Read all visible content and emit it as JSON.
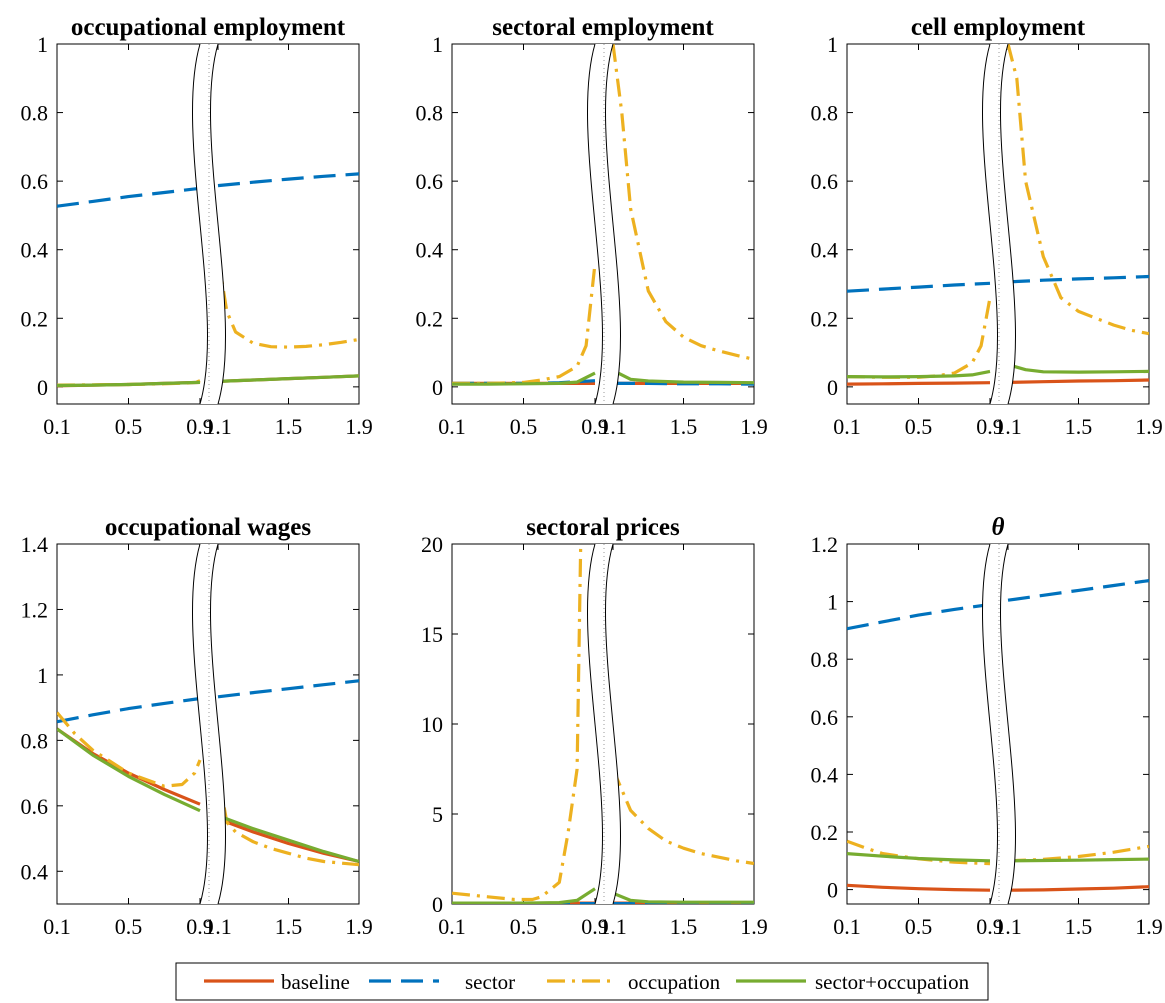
{
  "colors": {
    "baseline": "#D95319",
    "sector": "#0072BD",
    "occupation": "#EDB120",
    "sector_occupation": "#77AC30"
  },
  "legend": [
    {
      "key": "baseline",
      "label": "baseline",
      "style": "solid"
    },
    {
      "key": "sector",
      "label": "sector",
      "style": "dashed"
    },
    {
      "key": "occupation",
      "label": "occupation",
      "style": "dashdot"
    },
    {
      "key": "sector_occupation",
      "label": "sector+occupation",
      "style": "solid"
    }
  ],
  "chart_data": [
    {
      "type": "line",
      "title": "occupational employment",
      "ylim": [
        -0.05,
        1
      ],
      "yticks": [
        0,
        0.2,
        0.4,
        0.6,
        0.8,
        1
      ],
      "ytick_labels": [
        "0",
        "0.2",
        "0.4",
        "0.6",
        "0.8",
        "1"
      ],
      "xticks": [
        0.1,
        0.5,
        0.9,
        1.1,
        1.5,
        1.9
      ],
      "xtick_labels": [
        "0.1",
        "0.5",
        "0.9",
        "1.1",
        "1.5",
        "1.9"
      ],
      "axis_break": [
        0.9,
        1.1
      ],
      "series": [
        {
          "key": "baseline",
          "x": [
            0.1,
            0.3,
            0.5,
            0.7,
            0.9,
            1.1,
            1.3,
            1.5,
            1.7,
            1.9
          ],
          "y": [
            0.003,
            0.005,
            0.007,
            0.01,
            0.013,
            0.016,
            0.02,
            0.024,
            0.028,
            0.032
          ]
        },
        {
          "key": "sector",
          "x": [
            0.1,
            0.3,
            0.5,
            0.7,
            0.9,
            1.1,
            1.3,
            1.5,
            1.7,
            1.9
          ],
          "y": [
            0.527,
            0.541,
            0.555,
            0.567,
            0.579,
            0.587,
            0.597,
            0.606,
            0.614,
            0.621
          ]
        },
        {
          "key": "occupation",
          "x": [
            0.1,
            0.3,
            0.5,
            0.7,
            0.87,
            0.9,
            1.1,
            1.15,
            1.2,
            1.3,
            1.4,
            1.5,
            1.6,
            1.7,
            1.8,
            1.9
          ],
          "y": [
            0.005,
            0.006,
            0.007,
            0.009,
            0.012,
            0.018,
            0.38,
            0.22,
            0.16,
            0.127,
            0.117,
            0.116,
            0.118,
            0.123,
            0.13,
            0.138
          ]
        },
        {
          "key": "sector_occupation",
          "x": [
            0.1,
            0.3,
            0.5,
            0.7,
            0.9,
            1.1,
            1.3,
            1.5,
            1.7,
            1.9
          ],
          "y": [
            0.004,
            0.005,
            0.007,
            0.01,
            0.013,
            0.016,
            0.02,
            0.024,
            0.028,
            0.032
          ]
        }
      ]
    },
    {
      "type": "line",
      "title": "sectoral employment",
      "ylim": [
        -0.05,
        1
      ],
      "yticks": [
        0,
        0.2,
        0.4,
        0.6,
        0.8,
        1
      ],
      "ytick_labels": [
        "0",
        "0.2",
        "0.4",
        "0.6",
        "0.8",
        "1"
      ],
      "xticks": [
        0.1,
        0.5,
        0.9,
        1.1,
        1.5,
        1.9
      ],
      "xtick_labels": [
        "0.1",
        "0.5",
        "0.9",
        "1.1",
        "1.5",
        "1.9"
      ],
      "axis_break": [
        0.9,
        1.1
      ],
      "series": [
        {
          "key": "baseline",
          "x": [
            0.1,
            0.3,
            0.5,
            0.7,
            0.9,
            1.1,
            1.3,
            1.5,
            1.7,
            1.9
          ],
          "y": [
            0.01,
            0.01,
            0.01,
            0.01,
            0.01,
            0.01,
            0.01,
            0.01,
            0.01,
            0.01
          ]
        },
        {
          "key": "sector",
          "x": [
            0.1,
            0.3,
            0.5,
            0.7,
            0.9,
            1.1,
            1.3,
            1.5,
            1.7,
            1.9
          ],
          "y": [
            0.01,
            0.01,
            0.01,
            0.012,
            0.018,
            0.01,
            0.01,
            0.009,
            0.009,
            0.008
          ]
        },
        {
          "key": "occupation",
          "x": [
            0.1,
            0.3,
            0.5,
            0.6,
            0.7,
            0.8,
            0.85,
            0.9,
            1.1,
            1.15,
            1.2,
            1.3,
            1.4,
            1.5,
            1.6,
            1.7,
            1.8,
            1.9
          ],
          "y": [
            0.01,
            0.01,
            0.013,
            0.02,
            0.03,
            0.06,
            0.12,
            0.36,
            1.0,
            0.8,
            0.52,
            0.28,
            0.19,
            0.145,
            0.12,
            0.105,
            0.092,
            0.08
          ]
        },
        {
          "key": "sector_occupation",
          "x": [
            0.1,
            0.3,
            0.5,
            0.7,
            0.8,
            0.9,
            1.1,
            1.2,
            1.3,
            1.5,
            1.7,
            1.9
          ],
          "y": [
            0.008,
            0.008,
            0.009,
            0.01,
            0.014,
            0.04,
            0.048,
            0.022,
            0.017,
            0.014,
            0.013,
            0.012
          ]
        }
      ]
    },
    {
      "type": "line",
      "title": "cell employment",
      "ylim": [
        -0.05,
        1
      ],
      "yticks": [
        0,
        0.2,
        0.4,
        0.6,
        0.8,
        1
      ],
      "ytick_labels": [
        "0",
        "0.2",
        "0.4",
        "0.6",
        "0.8",
        "1"
      ],
      "xticks": [
        0.1,
        0.5,
        0.9,
        1.1,
        1.5,
        1.9
      ],
      "xtick_labels": [
        "0.1",
        "0.5",
        "0.9",
        "1.1",
        "1.5",
        "1.9"
      ],
      "axis_break": [
        0.9,
        1.1
      ],
      "series": [
        {
          "key": "baseline",
          "x": [
            0.1,
            0.3,
            0.5,
            0.7,
            0.9,
            1.1,
            1.3,
            1.5,
            1.7,
            1.9
          ],
          "y": [
            0.008,
            0.009,
            0.01,
            0.011,
            0.012,
            0.013,
            0.015,
            0.017,
            0.018,
            0.02
          ]
        },
        {
          "key": "sector",
          "x": [
            0.1,
            0.3,
            0.5,
            0.7,
            0.9,
            1.1,
            1.3,
            1.5,
            1.7,
            1.9
          ],
          "y": [
            0.279,
            0.285,
            0.291,
            0.297,
            0.302,
            0.306,
            0.311,
            0.315,
            0.318,
            0.322
          ]
        },
        {
          "key": "occupation",
          "x": [
            0.1,
            0.3,
            0.5,
            0.6,
            0.7,
            0.8,
            0.85,
            0.9,
            1.1,
            1.15,
            1.2,
            1.3,
            1.4,
            1.5,
            1.6,
            1.7,
            1.8,
            1.9
          ],
          "y": [
            0.03,
            0.028,
            0.028,
            0.032,
            0.04,
            0.07,
            0.12,
            0.26,
            1.0,
            0.9,
            0.6,
            0.38,
            0.26,
            0.22,
            0.2,
            0.18,
            0.165,
            0.155
          ]
        },
        {
          "key": "sector_occupation",
          "x": [
            0.1,
            0.3,
            0.5,
            0.7,
            0.8,
            0.9,
            1.1,
            1.2,
            1.3,
            1.5,
            1.7,
            1.9
          ],
          "y": [
            0.03,
            0.029,
            0.03,
            0.032,
            0.035,
            0.045,
            0.065,
            0.05,
            0.044,
            0.043,
            0.044,
            0.045
          ]
        }
      ]
    },
    {
      "type": "line",
      "title": "occupational wages",
      "ylim": [
        0.3,
        1.4
      ],
      "yticks": [
        0.4,
        0.6,
        0.8,
        1,
        1.2,
        1.4
      ],
      "ytick_labels": [
        "0.4",
        "0.6",
        "0.8",
        "1",
        "1.2",
        "1.4"
      ],
      "xticks": [
        0.1,
        0.5,
        0.9,
        1.1,
        1.5,
        1.9
      ],
      "xtick_labels": [
        "0.1",
        "0.5",
        "0.9",
        "1.1",
        "1.5",
        "1.9"
      ],
      "axis_break": [
        0.9,
        1.1
      ],
      "series": [
        {
          "key": "baseline",
          "x": [
            0.1,
            0.3,
            0.5,
            0.7,
            0.9,
            1.1,
            1.3,
            1.5,
            1.7,
            1.9
          ],
          "y": [
            0.835,
            0.76,
            0.7,
            0.65,
            0.605,
            0.56,
            0.52,
            0.485,
            0.455,
            0.43
          ]
        },
        {
          "key": "sector",
          "x": [
            0.1,
            0.3,
            0.5,
            0.7,
            0.9,
            1.1,
            1.3,
            1.5,
            1.7,
            1.9
          ],
          "y": [
            0.857,
            0.878,
            0.897,
            0.913,
            0.928,
            0.933,
            0.946,
            0.958,
            0.97,
            0.982
          ]
        },
        {
          "key": "occupation",
          "x": [
            0.1,
            0.2,
            0.3,
            0.5,
            0.7,
            0.8,
            0.87,
            0.9,
            1.1,
            1.15,
            1.2,
            1.3,
            1.4,
            1.5,
            1.6,
            1.7,
            1.8,
            1.9
          ],
          "y": [
            0.885,
            0.82,
            0.77,
            0.7,
            0.66,
            0.665,
            0.7,
            0.74,
            0.7,
            0.55,
            0.52,
            0.49,
            0.47,
            0.455,
            0.44,
            0.43,
            0.425,
            0.42
          ]
        },
        {
          "key": "sector_occupation",
          "x": [
            0.1,
            0.3,
            0.5,
            0.7,
            0.9,
            1.1,
            1.3,
            1.5,
            1.7,
            1.9
          ],
          "y": [
            0.835,
            0.755,
            0.69,
            0.635,
            0.585,
            0.57,
            0.53,
            0.495,
            0.46,
            0.43
          ]
        }
      ]
    },
    {
      "type": "line",
      "title": "sectoral prices",
      "ylim": [
        0,
        20
      ],
      "yticks": [
        0,
        5,
        10,
        15,
        20
      ],
      "ytick_labels": [
        "0",
        "5",
        "10",
        "15",
        "20"
      ],
      "xticks": [
        0.1,
        0.5,
        0.9,
        1.1,
        1.5,
        1.9
      ],
      "xtick_labels": [
        "0.1",
        "0.5",
        "0.9",
        "1.1",
        "1.5",
        "1.9"
      ],
      "axis_break": [
        0.9,
        1.1
      ],
      "series": [
        {
          "key": "baseline",
          "x": [
            0.1,
            0.3,
            0.5,
            0.7,
            0.9,
            1.1,
            1.3,
            1.5,
            1.7,
            1.9
          ],
          "y": [
            0.05,
            0.05,
            0.05,
            0.05,
            0.05,
            0.05,
            0.05,
            0.05,
            0.05,
            0.05
          ]
        },
        {
          "key": "sector",
          "x": [
            0.1,
            0.3,
            0.5,
            0.7,
            0.9,
            1.1,
            1.3,
            1.5,
            1.7,
            1.9
          ],
          "y": [
            0.02,
            0.02,
            0.02,
            0.02,
            0.02,
            0.02,
            0.02,
            0.02,
            0.02,
            0.02
          ]
        },
        {
          "key": "occupation",
          "x": [
            0.1,
            0.3,
            0.45,
            0.55,
            0.6,
            0.7,
            0.75,
            0.8,
            0.82,
            1.1,
            1.2,
            1.3,
            1.4,
            1.5,
            1.6,
            1.7,
            1.8,
            1.9
          ],
          "y": [
            0.6,
            0.4,
            0.25,
            0.25,
            0.4,
            1.2,
            4.0,
            7.5,
            20,
            7.5,
            5.2,
            4.2,
            3.5,
            3.1,
            2.8,
            2.6,
            2.4,
            2.25
          ]
        },
        {
          "key": "sector_occupation",
          "x": [
            0.1,
            0.3,
            0.5,
            0.7,
            0.8,
            0.9,
            1.1,
            1.2,
            1.3,
            1.5,
            1.7,
            1.9
          ],
          "y": [
            0.05,
            0.05,
            0.05,
            0.08,
            0.2,
            0.85,
            0.6,
            0.2,
            0.12,
            0.1,
            0.1,
            0.1
          ]
        }
      ]
    },
    {
      "type": "line",
      "title": "θ",
      "ylim": [
        -0.05,
        1.2
      ],
      "yticks": [
        0,
        0.2,
        0.4,
        0.6,
        0.8,
        1,
        1.2
      ],
      "ytick_labels": [
        "0",
        "0.2",
        "0.4",
        "0.6",
        "0.8",
        "1",
        "1.2"
      ],
      "xticks": [
        0.1,
        0.5,
        0.9,
        1.1,
        1.5,
        1.9
      ],
      "xtick_labels": [
        "0.1",
        "0.5",
        "0.9",
        "1.1",
        "1.5",
        "1.9"
      ],
      "axis_break": [
        0.9,
        1.1
      ],
      "series": [
        {
          "key": "baseline",
          "x": [
            0.1,
            0.3,
            0.5,
            0.7,
            0.9,
            1.1,
            1.3,
            1.5,
            1.7,
            1.9
          ],
          "y": [
            0.015,
            0.008,
            0.003,
            0.0,
            -0.002,
            -0.002,
            -0.001,
            0.002,
            0.005,
            0.01
          ]
        },
        {
          "key": "sector",
          "x": [
            0.1,
            0.3,
            0.5,
            0.7,
            0.9,
            1.1,
            1.3,
            1.5,
            1.7,
            1.9
          ],
          "y": [
            0.906,
            0.93,
            0.953,
            0.973,
            0.99,
            1.005,
            1.022,
            1.039,
            1.056,
            1.073
          ]
        },
        {
          "key": "occupation",
          "x": [
            0.1,
            0.2,
            0.3,
            0.5,
            0.7,
            0.9,
            1.1,
            1.3,
            1.5,
            1.7,
            1.9
          ],
          "y": [
            0.168,
            0.145,
            0.125,
            0.107,
            0.095,
            0.09,
            0.1,
            0.105,
            0.115,
            0.13,
            0.15
          ]
        },
        {
          "key": "sector_occupation",
          "x": [
            0.1,
            0.3,
            0.5,
            0.7,
            0.9,
            1.1,
            1.3,
            1.5,
            1.7,
            1.9
          ],
          "y": [
            0.125,
            0.116,
            0.108,
            0.103,
            0.1,
            0.1,
            0.101,
            0.102,
            0.104,
            0.106
          ]
        }
      ]
    }
  ]
}
